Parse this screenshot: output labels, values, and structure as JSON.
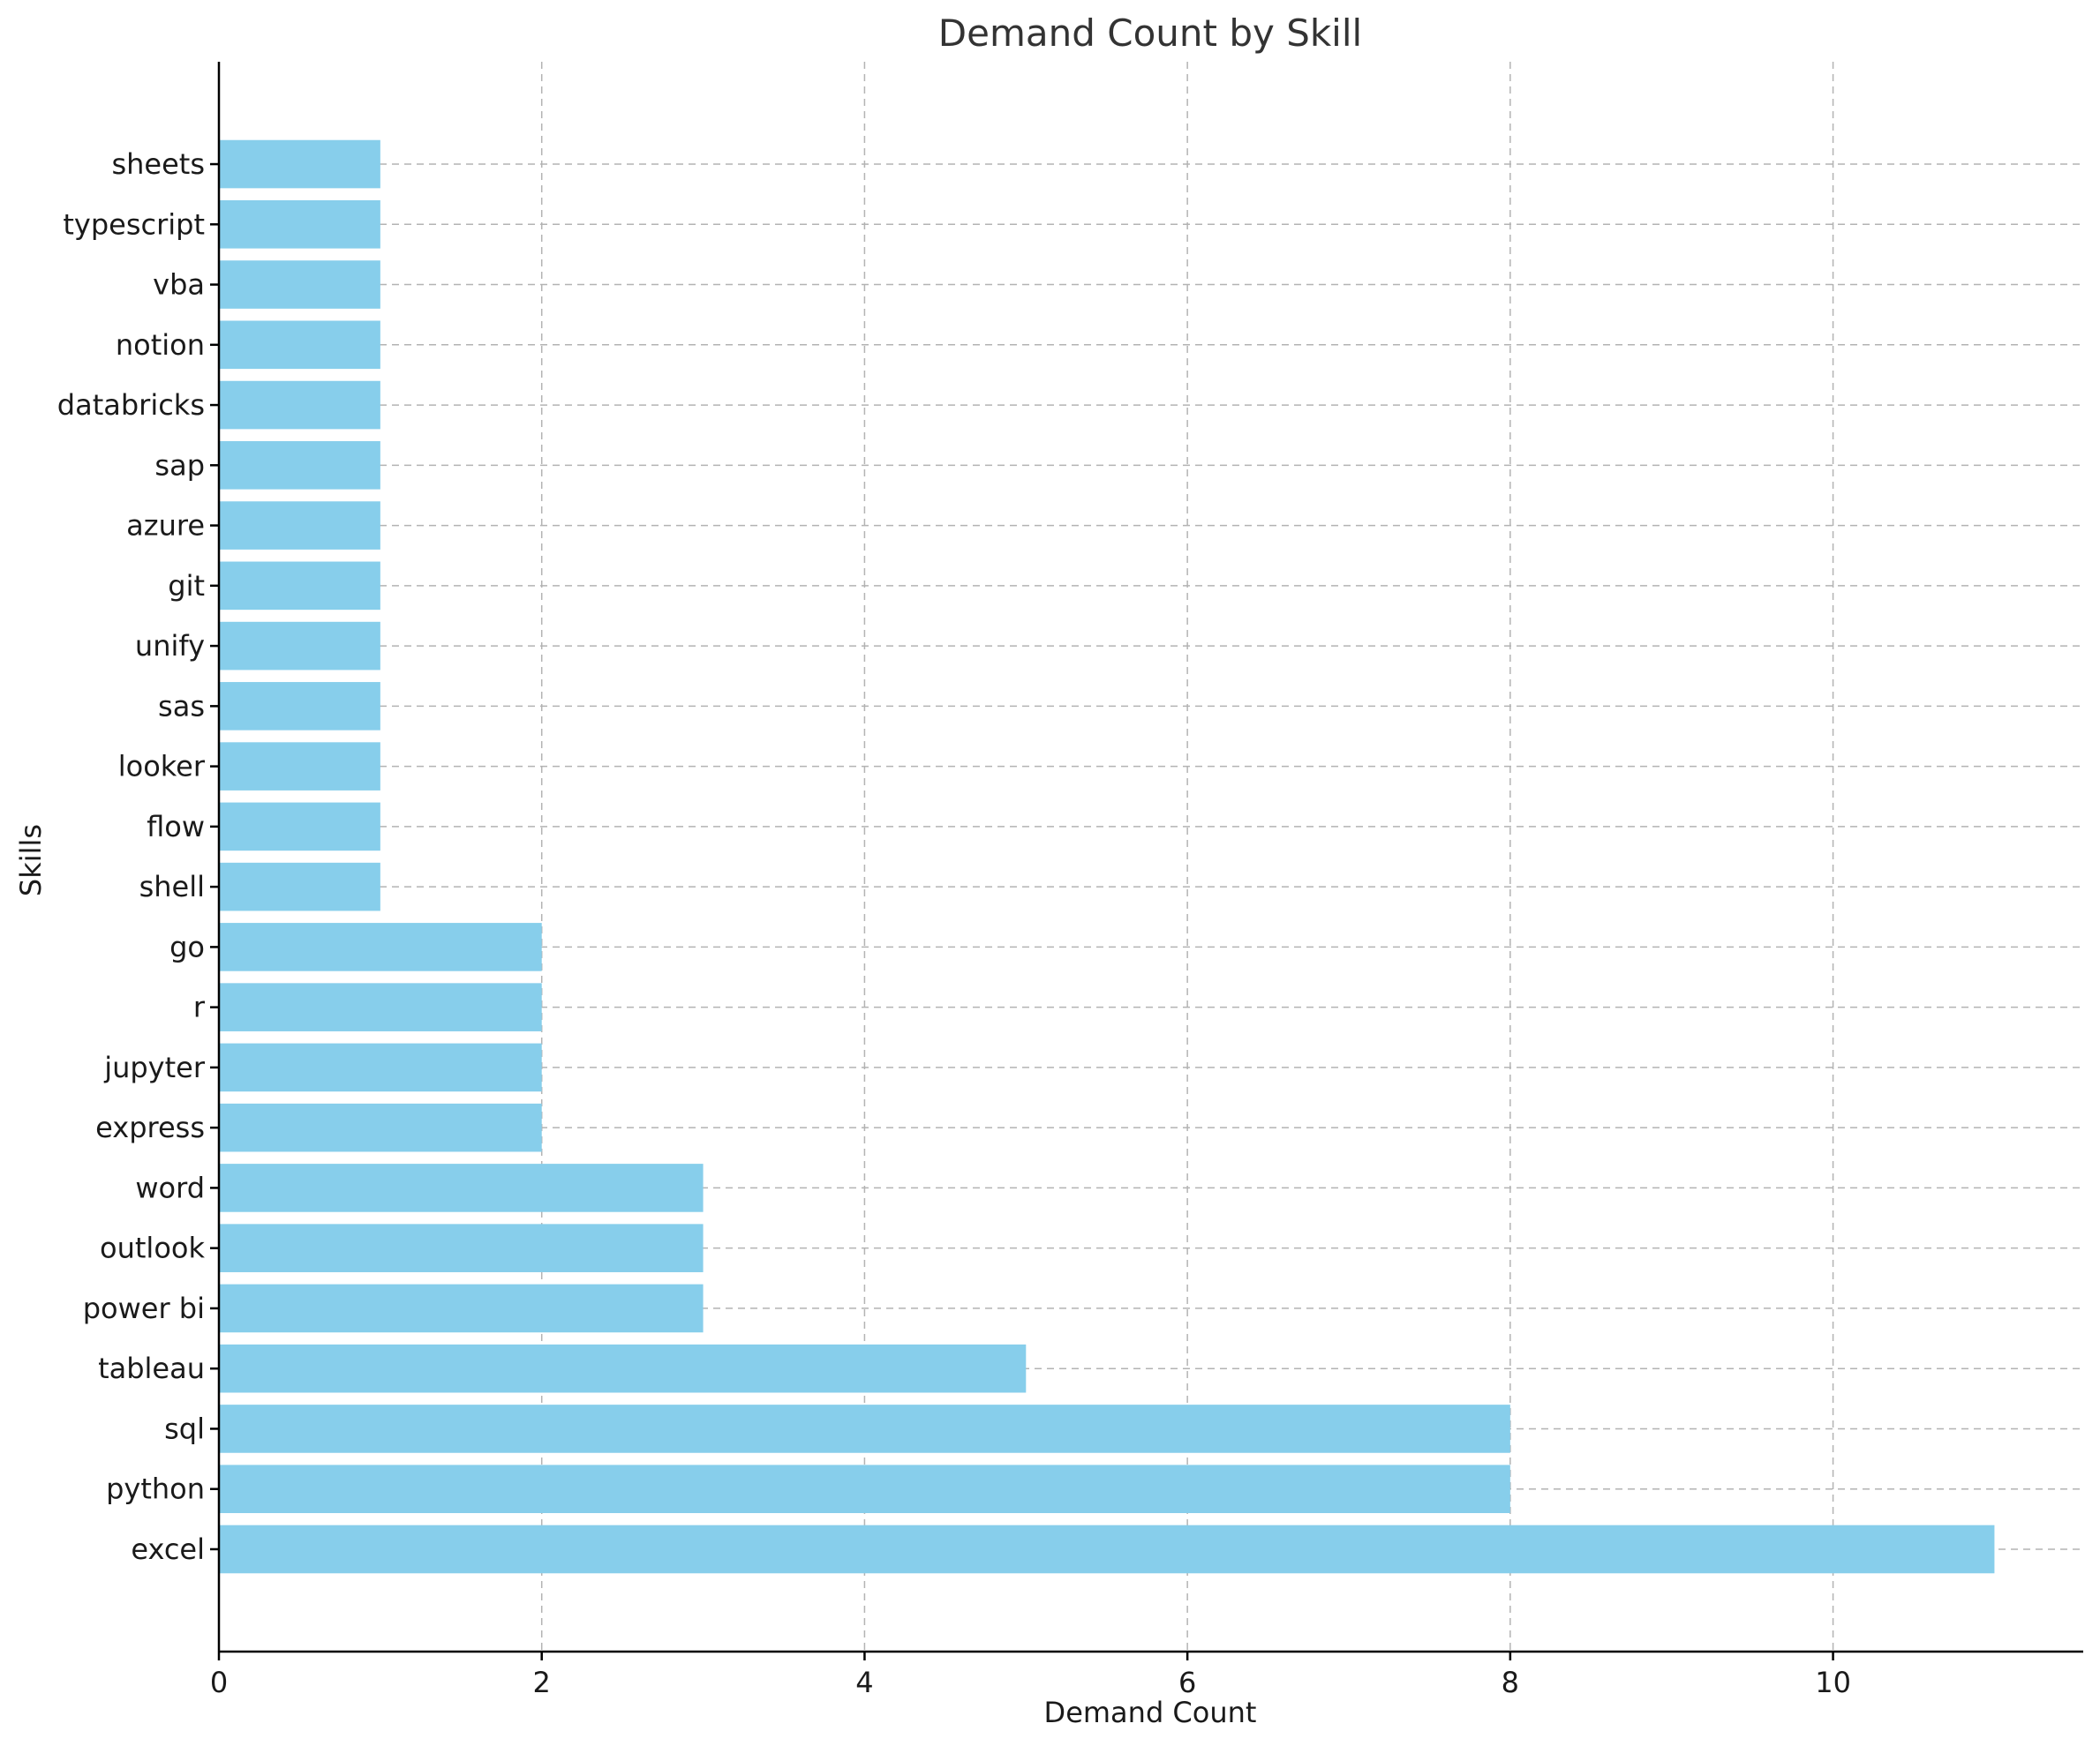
{
  "chart_data": {
    "type": "bar",
    "orientation": "horizontal",
    "title": "Demand Count by Skill",
    "xlabel": "Demand Count",
    "ylabel": "Skills",
    "xlim": [
      0,
      11.55
    ],
    "xticks": [
      0,
      2,
      4,
      6,
      8,
      10
    ],
    "grid": true,
    "bar_color": "#87CEEB",
    "categories": [
      "excel",
      "python",
      "sql",
      "tableau",
      "power bi",
      "outlook",
      "word",
      "express",
      "jupyter",
      "r",
      "go",
      "shell",
      "flow",
      "looker",
      "sas",
      "unify",
      "git",
      "azure",
      "sap",
      "databricks",
      "notion",
      "vba",
      "typescript",
      "sheets"
    ],
    "values": [
      11,
      8,
      8,
      5,
      3,
      3,
      3,
      2,
      2,
      2,
      2,
      1,
      1,
      1,
      1,
      1,
      1,
      1,
      1,
      1,
      1,
      1,
      1,
      1
    ]
  }
}
